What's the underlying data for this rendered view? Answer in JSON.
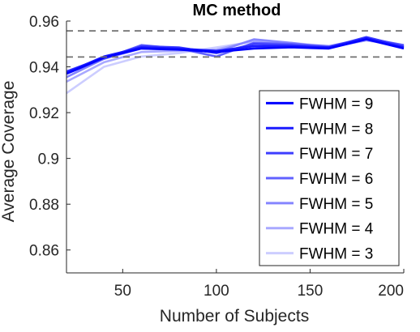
{
  "chart_data": {
    "type": "line",
    "title": "MC method",
    "xlabel": "Number of Subjects",
    "ylabel": "Average Coverage",
    "xlim": [
      20,
      200
    ],
    "ylim": [
      0.85,
      0.96
    ],
    "xticks": [
      50,
      100,
      150,
      200
    ],
    "xtick_labels": [
      "50",
      "100",
      "150",
      "200"
    ],
    "yticks": [
      0.86,
      0.88,
      0.9,
      0.92,
      0.94,
      0.96
    ],
    "ytick_labels": [
      "0.86",
      "0.88",
      "0.9",
      "0.92",
      "0.94",
      "0.96"
    ],
    "reference_lines": [
      0.9443,
      0.9557
    ],
    "legend_position": "bottom-right",
    "grid": false,
    "x": [
      20,
      40,
      60,
      80,
      100,
      120,
      140,
      160,
      180,
      200
    ],
    "series": [
      {
        "name": "FWHM = 9",
        "color": "#0000ff",
        "values": [
          0.937,
          0.944,
          0.948,
          0.9475,
          0.9465,
          0.948,
          0.9485,
          0.948,
          0.952,
          0.948
        ]
      },
      {
        "name": "FWHM = 8",
        "color": "#1a1aff",
        "values": [
          0.9375,
          0.9445,
          0.9485,
          0.948,
          0.947,
          0.949,
          0.949,
          0.9485,
          0.9525,
          0.9485
        ]
      },
      {
        "name": "FWHM = 7",
        "color": "#3d3dff",
        "values": [
          0.938,
          0.944,
          0.949,
          0.9485,
          0.946,
          0.95,
          0.9495,
          0.9485,
          0.953,
          0.949
        ]
      },
      {
        "name": "FWHM = 6",
        "color": "#6161ff",
        "values": [
          0.937,
          0.9435,
          0.9495,
          0.948,
          0.9445,
          0.9505,
          0.95,
          0.949,
          0.9525,
          0.9495
        ]
      },
      {
        "name": "FWHM = 5",
        "color": "#8585ff",
        "values": [
          0.9355,
          0.9435,
          0.948,
          0.9475,
          0.9465,
          0.952,
          0.9505,
          0.9485,
          0.952,
          0.949
        ]
      },
      {
        "name": "FWHM = 4",
        "color": "#a8a8ff",
        "values": [
          0.9335,
          0.942,
          0.9465,
          0.947,
          0.9475,
          0.9515,
          0.95,
          0.9485,
          0.9515,
          0.9495
        ]
      },
      {
        "name": "FWHM = 3",
        "color": "#cccdff",
        "values": [
          0.9285,
          0.94,
          0.9445,
          0.946,
          0.9485,
          0.951,
          0.9505,
          0.949,
          0.9515,
          0.949
        ]
      }
    ],
    "colors": {
      "axis": "#262626",
      "reference_line": "#707070",
      "legend_border": "#262626"
    }
  }
}
